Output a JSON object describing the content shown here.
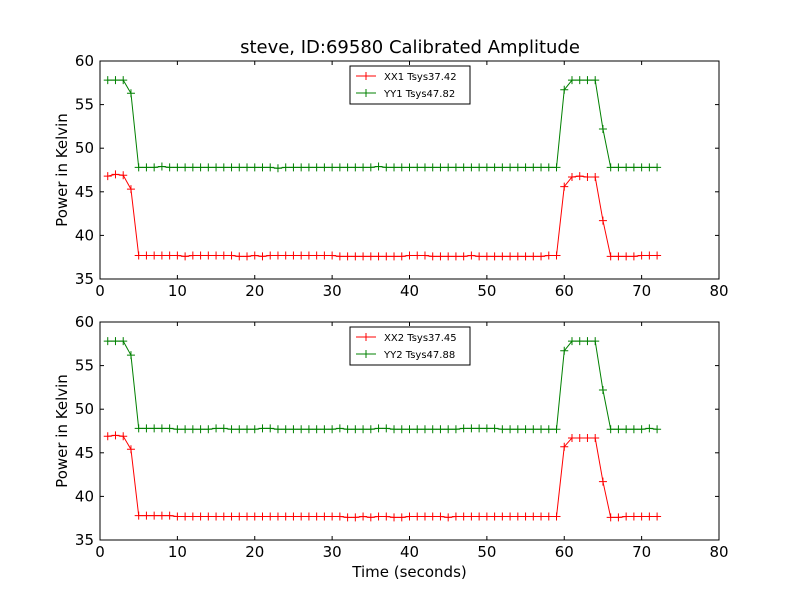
{
  "title": "steve, ID:69580 Calibrated Amplitude",
  "colors": {
    "xx": "#ff0000",
    "yy": "#008000"
  },
  "chart_data": [
    {
      "type": "line",
      "ylabel": "Power in Kelvin",
      "xlabel": "",
      "xlim": [
        0,
        80
      ],
      "ylim": [
        35,
        60
      ],
      "xticks": [
        0,
        10,
        20,
        30,
        40,
        50,
        60,
        70,
        80
      ],
      "yticks": [
        35,
        40,
        45,
        50,
        55,
        60
      ],
      "legend_position": "upper-center",
      "x": [
        1,
        2,
        3,
        4,
        5,
        6,
        7,
        8,
        9,
        10,
        11,
        12,
        13,
        14,
        15,
        16,
        17,
        18,
        19,
        20,
        21,
        22,
        23,
        24,
        25,
        26,
        27,
        28,
        29,
        30,
        31,
        32,
        33,
        34,
        35,
        36,
        37,
        38,
        39,
        40,
        41,
        42,
        43,
        44,
        45,
        46,
        47,
        48,
        49,
        50,
        51,
        52,
        53,
        54,
        55,
        56,
        57,
        58,
        59,
        60,
        61,
        62,
        63,
        64,
        65,
        66,
        67,
        68,
        69,
        70,
        71,
        72
      ],
      "series": [
        {
          "name": "XX1 Tsys37.42",
          "color": "#ff0000",
          "values": [
            46.8,
            47.0,
            46.9,
            45.3,
            37.7,
            37.7,
            37.7,
            37.7,
            37.7,
            37.7,
            37.6,
            37.7,
            37.7,
            37.7,
            37.7,
            37.7,
            37.7,
            37.6,
            37.6,
            37.7,
            37.6,
            37.7,
            37.7,
            37.7,
            37.7,
            37.7,
            37.7,
            37.7,
            37.7,
            37.7,
            37.6,
            37.6,
            37.6,
            37.6,
            37.6,
            37.6,
            37.6,
            37.6,
            37.6,
            37.7,
            37.7,
            37.7,
            37.6,
            37.6,
            37.6,
            37.6,
            37.6,
            37.7,
            37.6,
            37.6,
            37.6,
            37.6,
            37.6,
            37.6,
            37.6,
            37.6,
            37.6,
            37.7,
            37.7,
            45.6,
            46.7,
            46.8,
            46.7,
            46.7,
            41.7,
            37.6,
            37.6,
            37.6,
            37.6,
            37.7,
            37.7,
            37.7
          ]
        },
        {
          "name": "YY1 Tsys47.82",
          "color": "#008000",
          "values": [
            57.8,
            57.8,
            57.8,
            56.3,
            47.8,
            47.8,
            47.8,
            47.9,
            47.8,
            47.8,
            47.8,
            47.8,
            47.8,
            47.8,
            47.8,
            47.8,
            47.8,
            47.8,
            47.8,
            47.8,
            47.8,
            47.8,
            47.7,
            47.8,
            47.8,
            47.8,
            47.8,
            47.8,
            47.8,
            47.8,
            47.8,
            47.8,
            47.8,
            47.8,
            47.8,
            47.9,
            47.8,
            47.8,
            47.8,
            47.8,
            47.8,
            47.8,
            47.8,
            47.8,
            47.8,
            47.8,
            47.8,
            47.8,
            47.8,
            47.8,
            47.8,
            47.8,
            47.8,
            47.8,
            47.8,
            47.8,
            47.8,
            47.8,
            47.8,
            56.7,
            57.8,
            57.8,
            57.8,
            57.8,
            52.2,
            47.8,
            47.8,
            47.8,
            47.8,
            47.8,
            47.8,
            47.8
          ]
        }
      ]
    },
    {
      "type": "line",
      "ylabel": "Power in Kelvin",
      "xlabel": "Time (seconds)",
      "xlim": [
        0,
        80
      ],
      "ylim": [
        35,
        60
      ],
      "xticks": [
        0,
        10,
        20,
        30,
        40,
        50,
        60,
        70,
        80
      ],
      "yticks": [
        35,
        40,
        45,
        50,
        55,
        60
      ],
      "legend_position": "upper-center",
      "x": [
        1,
        2,
        3,
        4,
        5,
        6,
        7,
        8,
        9,
        10,
        11,
        12,
        13,
        14,
        15,
        16,
        17,
        18,
        19,
        20,
        21,
        22,
        23,
        24,
        25,
        26,
        27,
        28,
        29,
        30,
        31,
        32,
        33,
        34,
        35,
        36,
        37,
        38,
        39,
        40,
        41,
        42,
        43,
        44,
        45,
        46,
        47,
        48,
        49,
        50,
        51,
        52,
        53,
        54,
        55,
        56,
        57,
        58,
        59,
        60,
        61,
        62,
        63,
        64,
        65,
        66,
        67,
        68,
        69,
        70,
        71,
        72
      ],
      "series": [
        {
          "name": "XX2 Tsys37.45",
          "color": "#ff0000",
          "values": [
            46.9,
            47.0,
            46.9,
            45.4,
            37.8,
            37.8,
            37.8,
            37.8,
            37.8,
            37.7,
            37.7,
            37.7,
            37.7,
            37.7,
            37.7,
            37.7,
            37.7,
            37.7,
            37.7,
            37.7,
            37.7,
            37.7,
            37.7,
            37.7,
            37.7,
            37.7,
            37.7,
            37.7,
            37.7,
            37.7,
            37.7,
            37.6,
            37.6,
            37.7,
            37.6,
            37.7,
            37.7,
            37.6,
            37.6,
            37.7,
            37.7,
            37.7,
            37.7,
            37.7,
            37.6,
            37.7,
            37.7,
            37.7,
            37.7,
            37.7,
            37.7,
            37.7,
            37.7,
            37.7,
            37.7,
            37.7,
            37.7,
            37.7,
            37.7,
            45.7,
            46.7,
            46.7,
            46.7,
            46.7,
            41.7,
            37.6,
            37.6,
            37.7,
            37.7,
            37.7,
            37.7,
            37.7
          ]
        },
        {
          "name": "YY2 Tsys47.88",
          "color": "#008000",
          "values": [
            57.8,
            57.8,
            57.8,
            56.2,
            47.8,
            47.8,
            47.8,
            47.8,
            47.8,
            47.7,
            47.7,
            47.7,
            47.7,
            47.7,
            47.8,
            47.8,
            47.7,
            47.7,
            47.7,
            47.7,
            47.8,
            47.8,
            47.7,
            47.7,
            47.7,
            47.7,
            47.7,
            47.7,
            47.7,
            47.7,
            47.8,
            47.7,
            47.7,
            47.7,
            47.7,
            47.8,
            47.8,
            47.7,
            47.7,
            47.7,
            47.7,
            47.7,
            47.7,
            47.7,
            47.7,
            47.7,
            47.8,
            47.8,
            47.8,
            47.8,
            47.8,
            47.7,
            47.7,
            47.7,
            47.7,
            47.7,
            47.7,
            47.7,
            47.7,
            56.7,
            57.8,
            57.8,
            57.8,
            57.8,
            52.2,
            47.7,
            47.7,
            47.7,
            47.7,
            47.7,
            47.8,
            47.7
          ]
        }
      ]
    }
  ]
}
